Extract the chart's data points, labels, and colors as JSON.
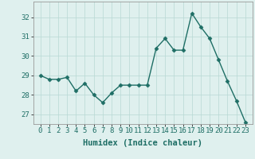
{
  "x": [
    0,
    1,
    2,
    3,
    4,
    5,
    6,
    7,
    8,
    9,
    10,
    11,
    12,
    13,
    14,
    15,
    16,
    17,
    18,
    19,
    20,
    21,
    22,
    23
  ],
  "y": [
    29.0,
    28.8,
    28.8,
    28.9,
    28.2,
    28.6,
    28.0,
    27.6,
    28.1,
    28.5,
    28.5,
    28.5,
    28.5,
    30.4,
    30.9,
    30.3,
    30.3,
    32.2,
    31.5,
    30.9,
    29.8,
    28.7,
    27.7,
    26.6
  ],
  "line_color": "#1e6e65",
  "marker": "D",
  "marker_size": 2.5,
  "bg_color": "#dff0ee",
  "grid_color": "#b8d8d4",
  "xlabel": "Humidex (Indice chaleur)",
  "ylim": [
    26.5,
    32.8
  ],
  "yticks": [
    27,
    28,
    29,
    30,
    31,
    32
  ],
  "xticks": [
    0,
    1,
    2,
    3,
    4,
    5,
    6,
    7,
    8,
    9,
    10,
    11,
    12,
    13,
    14,
    15,
    16,
    17,
    18,
    19,
    20,
    21,
    22,
    23
  ],
  "axis_color": "#999999",
  "tick_color": "#1e6e65",
  "xlabel_fontsize": 7.5,
  "tick_fontsize": 6.5,
  "line_width": 1.0
}
